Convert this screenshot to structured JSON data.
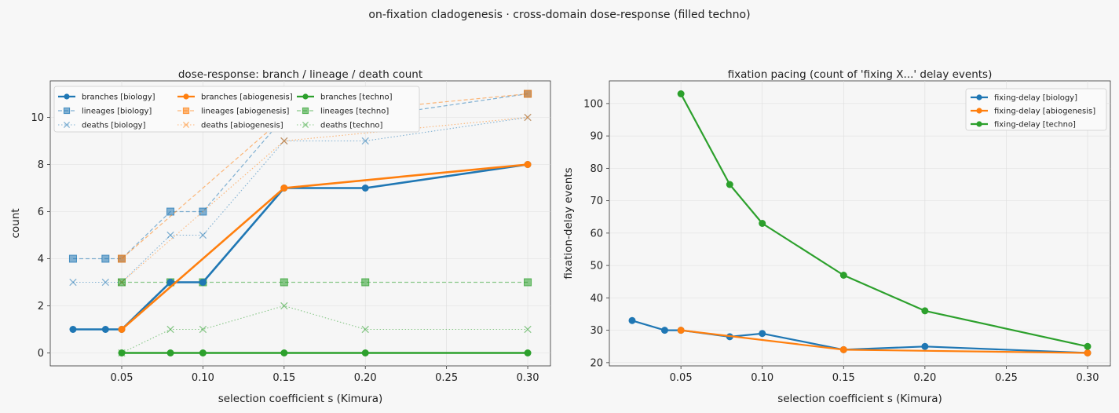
{
  "figure": {
    "suptitle": "on-fixation cladogenesis · cross-domain dose-response (filled techno)"
  },
  "colors": {
    "biology": "#1f77b4",
    "abiogenesis": "#ff7f0e",
    "techno": "#2ca02c"
  },
  "chart_data": [
    {
      "type": "line",
      "title": "dose-response: branch / lineage / death count",
      "xlabel": "selection coefficient s (Kimura)",
      "ylabel": "count",
      "xlim": [
        0.006,
        0.314
      ],
      "ylim": [
        -0.55,
        11.55
      ],
      "xticks": [
        "0.05",
        "0.10",
        "0.15",
        "0.20",
        "0.25",
        "0.30"
      ],
      "yticks": [
        "0",
        "2",
        "4",
        "6",
        "8",
        "10"
      ],
      "grid": true,
      "legend": "top-left, 3 columns",
      "series": [
        {
          "name": "branches [biology]",
          "group": "biology",
          "style": "branches",
          "x": [
            0.02,
            0.04,
            0.05,
            0.08,
            0.1,
            0.15,
            0.2,
            0.3
          ],
          "y": [
            1,
            1,
            1,
            3,
            3,
            7,
            7,
            8
          ]
        },
        {
          "name": "lineages [biology]",
          "group": "biology",
          "style": "lineages",
          "x": [
            0.02,
            0.04,
            0.05,
            0.08,
            0.1,
            0.15,
            0.2,
            0.3
          ],
          "y": [
            4,
            4,
            4,
            6,
            6,
            10,
            10,
            11
          ]
        },
        {
          "name": "deaths [biology]",
          "group": "biology",
          "style": "deaths",
          "x": [
            0.02,
            0.04,
            0.05,
            0.08,
            0.1,
            0.15,
            0.2,
            0.3
          ],
          "y": [
            3,
            3,
            3,
            5,
            5,
            9,
            9,
            10
          ]
        },
        {
          "name": "branches [abiogenesis]",
          "group": "abiogenesis",
          "style": "branches",
          "x": [
            0.05,
            0.15,
            0.3
          ],
          "y": [
            1,
            7,
            8
          ]
        },
        {
          "name": "lineages [abiogenesis]",
          "group": "abiogenesis",
          "style": "lineages",
          "x": [
            0.05,
            0.15,
            0.3
          ],
          "y": [
            4,
            10,
            11
          ]
        },
        {
          "name": "deaths [abiogenesis]",
          "group": "abiogenesis",
          "style": "deaths",
          "x": [
            0.05,
            0.15,
            0.3
          ],
          "y": [
            3,
            9,
            10
          ]
        },
        {
          "name": "branches [techno]",
          "group": "techno",
          "style": "branches",
          "x": [
            0.05,
            0.08,
            0.1,
            0.15,
            0.2,
            0.3
          ],
          "y": [
            0,
            0,
            0,
            0,
            0,
            0
          ]
        },
        {
          "name": "lineages [techno]",
          "group": "techno",
          "style": "lineages",
          "x": [
            0.05,
            0.08,
            0.1,
            0.15,
            0.2,
            0.3
          ],
          "y": [
            3,
            3,
            3,
            3,
            3,
            3
          ]
        },
        {
          "name": "deaths [techno]",
          "group": "techno",
          "style": "deaths",
          "x": [
            0.05,
            0.08,
            0.1,
            0.15,
            0.2,
            0.3
          ],
          "y": [
            0,
            1,
            1,
            2,
            1,
            1
          ]
        }
      ]
    },
    {
      "type": "line",
      "title": "fixation pacing (count of 'fixing X...' delay events)",
      "xlabel": "selection coefficient s (Kimura)",
      "ylabel": "fixation-delay events",
      "xlim": [
        0.006,
        0.314
      ],
      "ylim": [
        19.0,
        107.0
      ],
      "xticks": [
        "0.05",
        "0.10",
        "0.15",
        "0.20",
        "0.25",
        "0.30"
      ],
      "yticks": [
        "20",
        "30",
        "40",
        "50",
        "60",
        "70",
        "80",
        "90",
        "100"
      ],
      "grid": true,
      "legend": "top-right",
      "series": [
        {
          "name": "fixing-delay [biology]",
          "group": "biology",
          "style": "delay",
          "x": [
            0.02,
            0.04,
            0.05,
            0.08,
            0.1,
            0.15,
            0.2,
            0.3
          ],
          "y": [
            33,
            30,
            30,
            28,
            29,
            24,
            25,
            23
          ]
        },
        {
          "name": "fixing-delay [abiogenesis]",
          "group": "abiogenesis",
          "style": "delay",
          "x": [
            0.05,
            0.15,
            0.3
          ],
          "y": [
            30,
            24,
            23
          ]
        },
        {
          "name": "fixing-delay [techno]",
          "group": "techno",
          "style": "delay",
          "x": [
            0.05,
            0.08,
            0.1,
            0.15,
            0.2,
            0.3
          ],
          "y": [
            103,
            75,
            63,
            47,
            36,
            25
          ]
        }
      ]
    }
  ]
}
